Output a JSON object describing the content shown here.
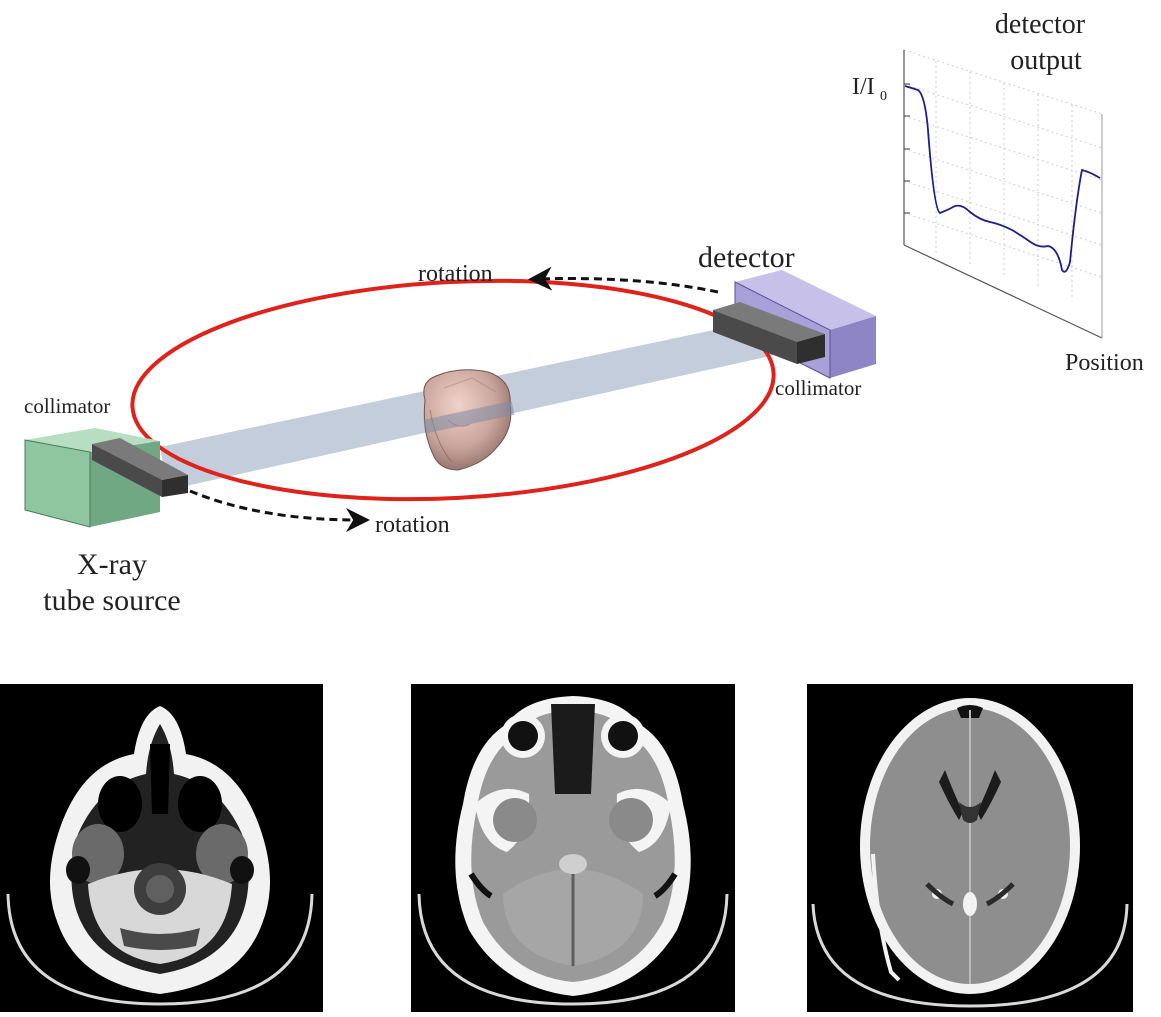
{
  "labels": {
    "detector_output_line1": "detector",
    "detector_output_line2": "output",
    "y_axis_label": "I/I",
    "y_axis_subscript": "0",
    "x_axis_label": "Position",
    "detector": "detector",
    "collimator_right": "collimator",
    "collimator_left": "collimator",
    "rotation_top": "rotation",
    "rotation_bottom": "rotation",
    "source_line1": "X-ray",
    "source_line2": "tube source"
  },
  "colors": {
    "orbit": "#e0221b",
    "beam": "#bcc8d8",
    "source_box": "#8fc59f",
    "detector_box": "#9c94cf",
    "collimator_box": "#4a4a4a",
    "curve": "#1a1f8c"
  },
  "ct_slices": [
    {
      "name": "ct-slice-skull-base"
    },
    {
      "name": "ct-slice-cerebellum"
    },
    {
      "name": "ct-slice-ventricles"
    }
  ]
}
